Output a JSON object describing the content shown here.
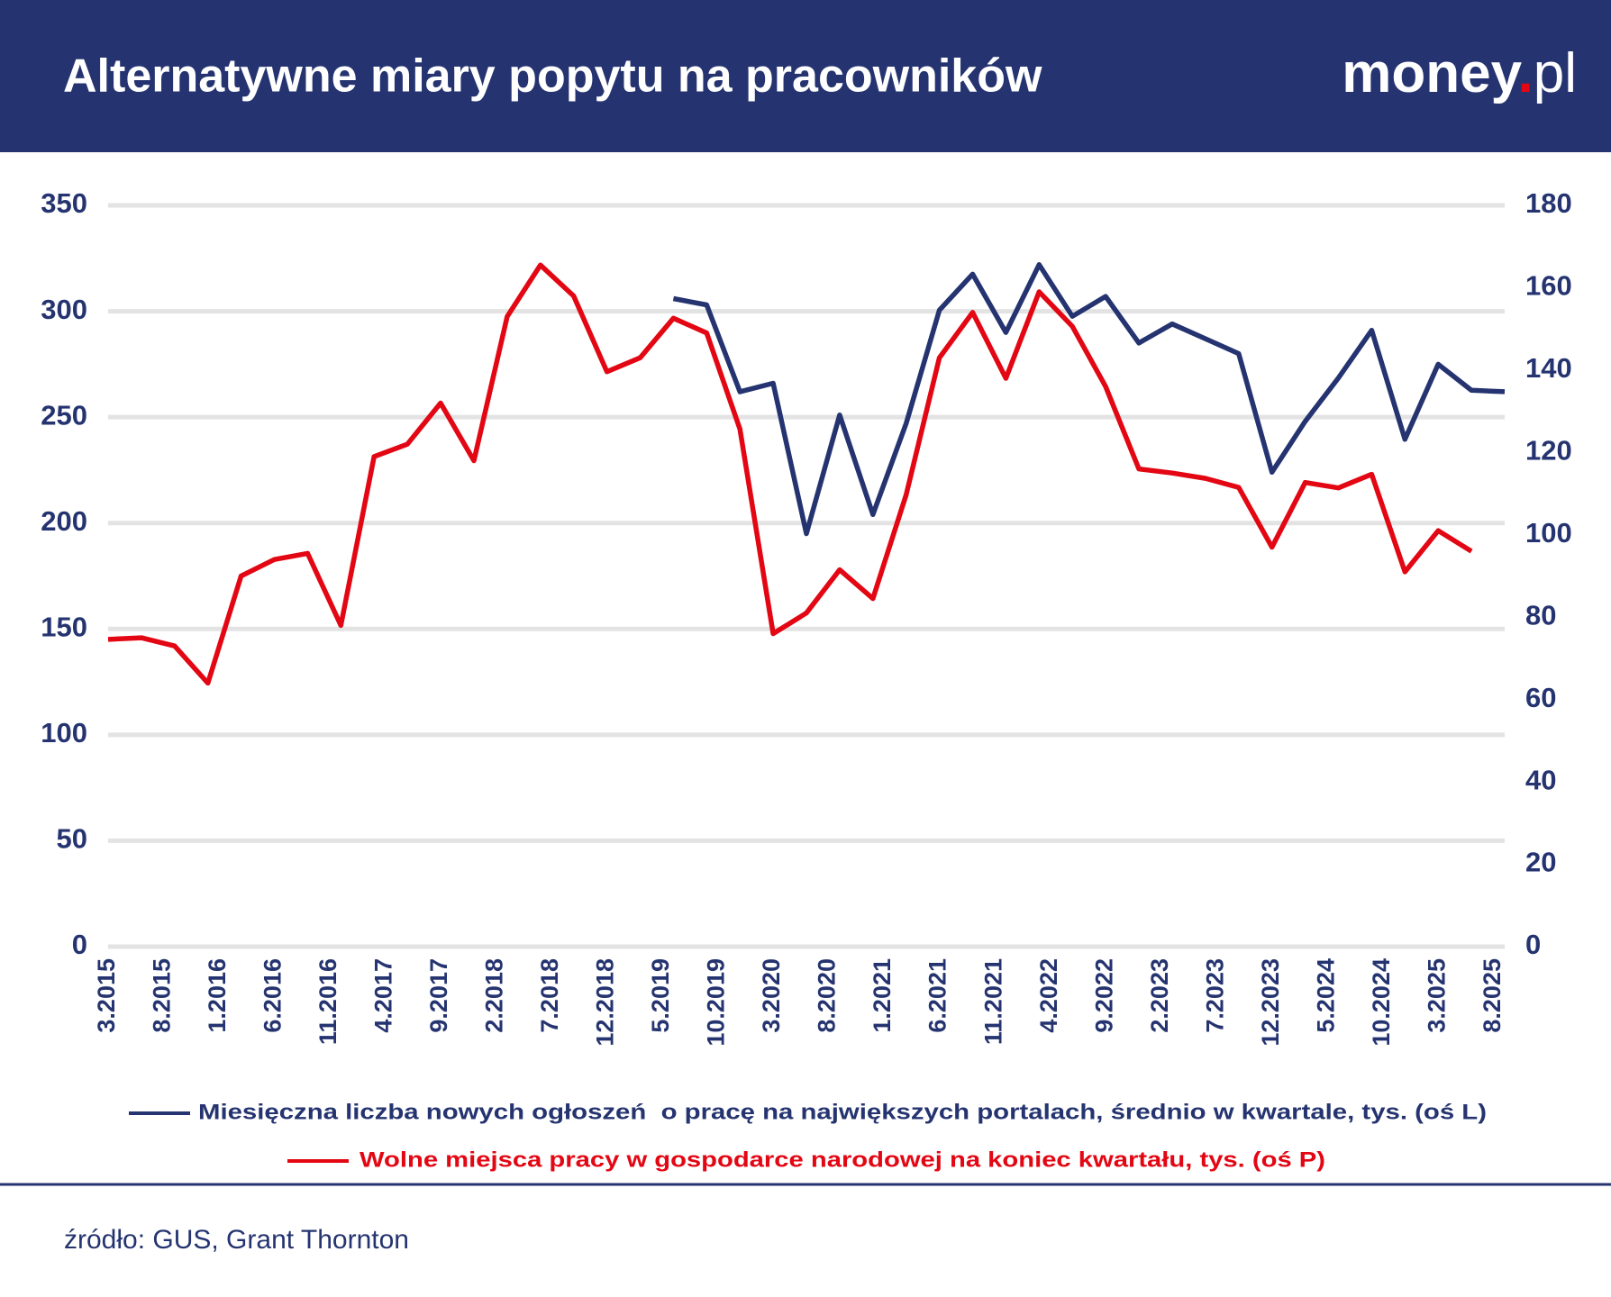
{
  "chart_data": {
    "type": "line",
    "title": "Alternatywne miary popytu na pracowników",
    "brand": {
      "name": "money",
      "dot": ".",
      "tld": "pl"
    },
    "source": "źródło: GUS, Grant Thornton",
    "x": [
      "3.2015",
      "6.2015",
      "9.2015",
      "12.2015",
      "3.2016",
      "6.2016",
      "9.2016",
      "12.2016",
      "3.2017",
      "6.2017",
      "9.2017",
      "12.2017",
      "3.2018",
      "6.2018",
      "9.2018",
      "12.2018",
      "3.2019",
      "6.2019",
      "9.2019",
      "12.2019",
      "3.2020",
      "6.2020",
      "9.2020",
      "12.2020",
      "3.2021",
      "6.2021",
      "9.2021",
      "12.2021",
      "3.2022",
      "6.2022",
      "9.2022",
      "12.2022",
      "3.2023",
      "6.2023",
      "9.2023",
      "12.2023",
      "3.2024",
      "6.2024",
      "9.2024",
      "12.2024",
      "3.2025",
      "6.2025",
      "9.2025"
    ],
    "xlim": [
      "3.2015",
      "9.2025"
    ],
    "xticks": [
      "3.2015",
      "8.2015",
      "1.2016",
      "6.2016",
      "11.2016",
      "4.2017",
      "9.2017",
      "2.2018",
      "7.2018",
      "12.2018",
      "5.2019",
      "10.2019",
      "3.2020",
      "8.2020",
      "1.2021",
      "6.2021",
      "11.2021",
      "4.2022",
      "9.2022",
      "2.2023",
      "7.2023",
      "12.2023",
      "5.2024",
      "10.2024",
      "3.2025",
      "8.2025"
    ],
    "ylim": [
      0,
      350
    ],
    "yticks": [
      0,
      50,
      100,
      150,
      200,
      250,
      300,
      350
    ],
    "y2lim": [
      0,
      180
    ],
    "y2ticks": [
      0,
      20,
      40,
      60,
      80,
      100,
      120,
      140,
      160,
      180
    ],
    "grid": true,
    "series": [
      {
        "name": "Miesięczna liczba nowych ogłoszeń  o pracę na największych portalach, średnio w kwartale, tys. (oś L)",
        "color": "#253470",
        "values": [
          null,
          null,
          null,
          null,
          null,
          null,
          null,
          null,
          null,
          null,
          null,
          null,
          null,
          null,
          null,
          null,
          null,
          306,
          303,
          262,
          266,
          195,
          251,
          204,
          247,
          300.5,
          317.5,
          290,
          322,
          297.6,
          307,
          285,
          294,
          287,
          280,
          224,
          248,
          268.5,
          291,
          239.5,
          275,
          262.7,
          262
        ]
      },
      {
        "name": "Wolne miejsca pracy w gospodarce narodowej na koniec kwartału, tys. (oś P)",
        "color": "#e30613",
        "axis": "y2",
        "values": [
          74.6,
          75,
          73,
          64,
          90,
          94,
          95.5,
          78,
          119,
          122,
          132,
          118,
          153,
          165.5,
          158,
          139.6,
          143,
          152.6,
          149,
          125.7,
          76,
          81,
          91.5,
          84.5,
          109.7,
          143,
          154,
          138,
          159,
          150.6,
          136,
          116,
          115,
          113.7,
          111.5,
          97,
          112.7,
          111.4,
          114.7,
          91,
          101,
          96,
          null
        ]
      }
    ]
  }
}
